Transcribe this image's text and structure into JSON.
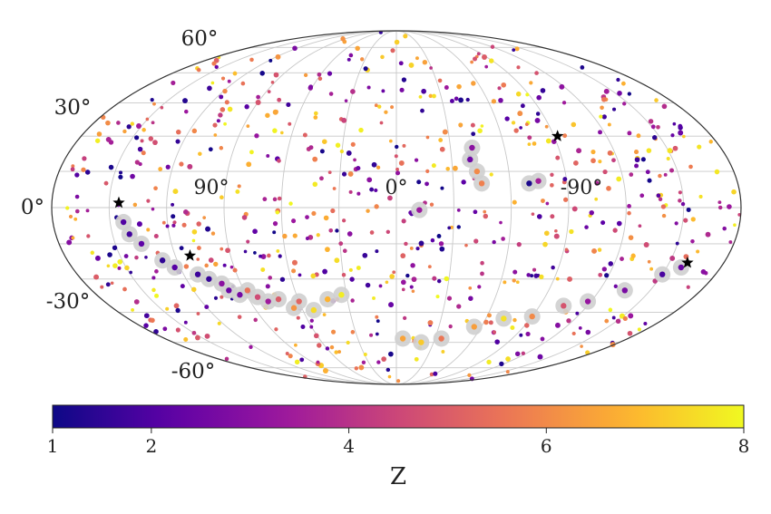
{
  "chart_data": {
    "type": "scatter",
    "projection": "mollweide",
    "grid": true,
    "lat_tick_labels": [
      "60°",
      "30°",
      "0°",
      "-30°",
      "-60°"
    ],
    "lon_tick_labels": [
      "90°",
      "0°",
      "-90°"
    ],
    "lat_ticks_deg": [
      60,
      30,
      0,
      -30,
      -60
    ],
    "lon_ticks_deg": [
      90,
      0,
      -90
    ],
    "colorbar": {
      "label": "Z",
      "range": [
        1,
        8
      ],
      "ticks": [
        1,
        2,
        4,
        6,
        8
      ],
      "tick_labels": [
        "1",
        "2",
        "4",
        "6",
        "8"
      ],
      "colormap": "plasma"
    },
    "colormap_stops": [
      "#0d0887",
      "#5c01a6",
      "#9c179e",
      "#cc4778",
      "#ed7953",
      "#fdb42f",
      "#f0f921"
    ],
    "star_markers": [
      {
        "lon": -92,
        "lat": 30
      },
      {
        "lon": 145,
        "lat": 2
      },
      {
        "lon": 112,
        "lat": -20
      },
      {
        "lon": -160,
        "lat": -23
      }
    ],
    "highlighted_sources": [
      {
        "lon": 143,
        "lat": -6,
        "z": 2.0
      },
      {
        "lon": 141,
        "lat": -11,
        "z": 1.8
      },
      {
        "lon": 136,
        "lat": -15,
        "z": 2.2
      },
      {
        "lon": 128,
        "lat": -22,
        "z": 1.5
      },
      {
        "lon": 123,
        "lat": -25,
        "z": 2.1
      },
      {
        "lon": 112,
        "lat": -28,
        "z": 1.7
      },
      {
        "lon": 107,
        "lat": -30,
        "z": 1.6
      },
      {
        "lon": 101,
        "lat": -32,
        "z": 3.0
      },
      {
        "lon": 99,
        "lat": -35,
        "z": 2.4
      },
      {
        "lon": 94,
        "lat": -37,
        "z": 2.6
      },
      {
        "lon": 88,
        "lat": -35,
        "z": 5.5
      },
      {
        "lon": 84,
        "lat": -38,
        "z": 4.6
      },
      {
        "lon": 79,
        "lat": -40,
        "z": 3.4
      },
      {
        "lon": 72,
        "lat": -39,
        "z": 5.0
      },
      {
        "lon": 65,
        "lat": -43,
        "z": 6.2
      },
      {
        "lon": 60,
        "lat": -40,
        "z": 5.2
      },
      {
        "lon": 53,
        "lat": -44,
        "z": 7.5
      },
      {
        "lon": 42,
        "lat": -39,
        "z": 6.8
      },
      {
        "lon": 33,
        "lat": -37,
        "z": 7.8
      },
      {
        "lon": -40,
        "lat": 20,
        "z": 2.5
      },
      {
        "lon": -43,
        "lat": 15,
        "z": 6.0
      },
      {
        "lon": -42,
        "lat": 25,
        "z": 3.0
      },
      {
        "lon": -45,
        "lat": 10,
        "z": 5.8
      },
      {
        "lon": -70,
        "lat": 10,
        "z": 1.2
      },
      {
        "lon": -75,
        "lat": 11,
        "z": 3.5
      },
      {
        "lon": -12,
        "lat": -1,
        "z": 3.3
      },
      {
        "lon": -5,
        "lat": -58,
        "z": 6.5
      },
      {
        "lon": -20,
        "lat": -60,
        "z": 7.2
      },
      {
        "lon": -35,
        "lat": -58,
        "z": 5.6
      },
      {
        "lon": -55,
        "lat": -52,
        "z": 6.4
      },
      {
        "lon": -72,
        "lat": -48,
        "z": 7.6
      },
      {
        "lon": -90,
        "lat": -47,
        "z": 6.0
      },
      {
        "lon": -105,
        "lat": -42,
        "z": 4.8
      },
      {
        "lon": -118,
        "lat": -40,
        "z": 3.2
      },
      {
        "lon": -135,
        "lat": -35,
        "z": 2.7
      },
      {
        "lon": -150,
        "lat": -28,
        "z": 1.9
      },
      {
        "lon": -158,
        "lat": -25,
        "z": 2.4
      }
    ],
    "galactic_plane_band_note": ""
  }
}
